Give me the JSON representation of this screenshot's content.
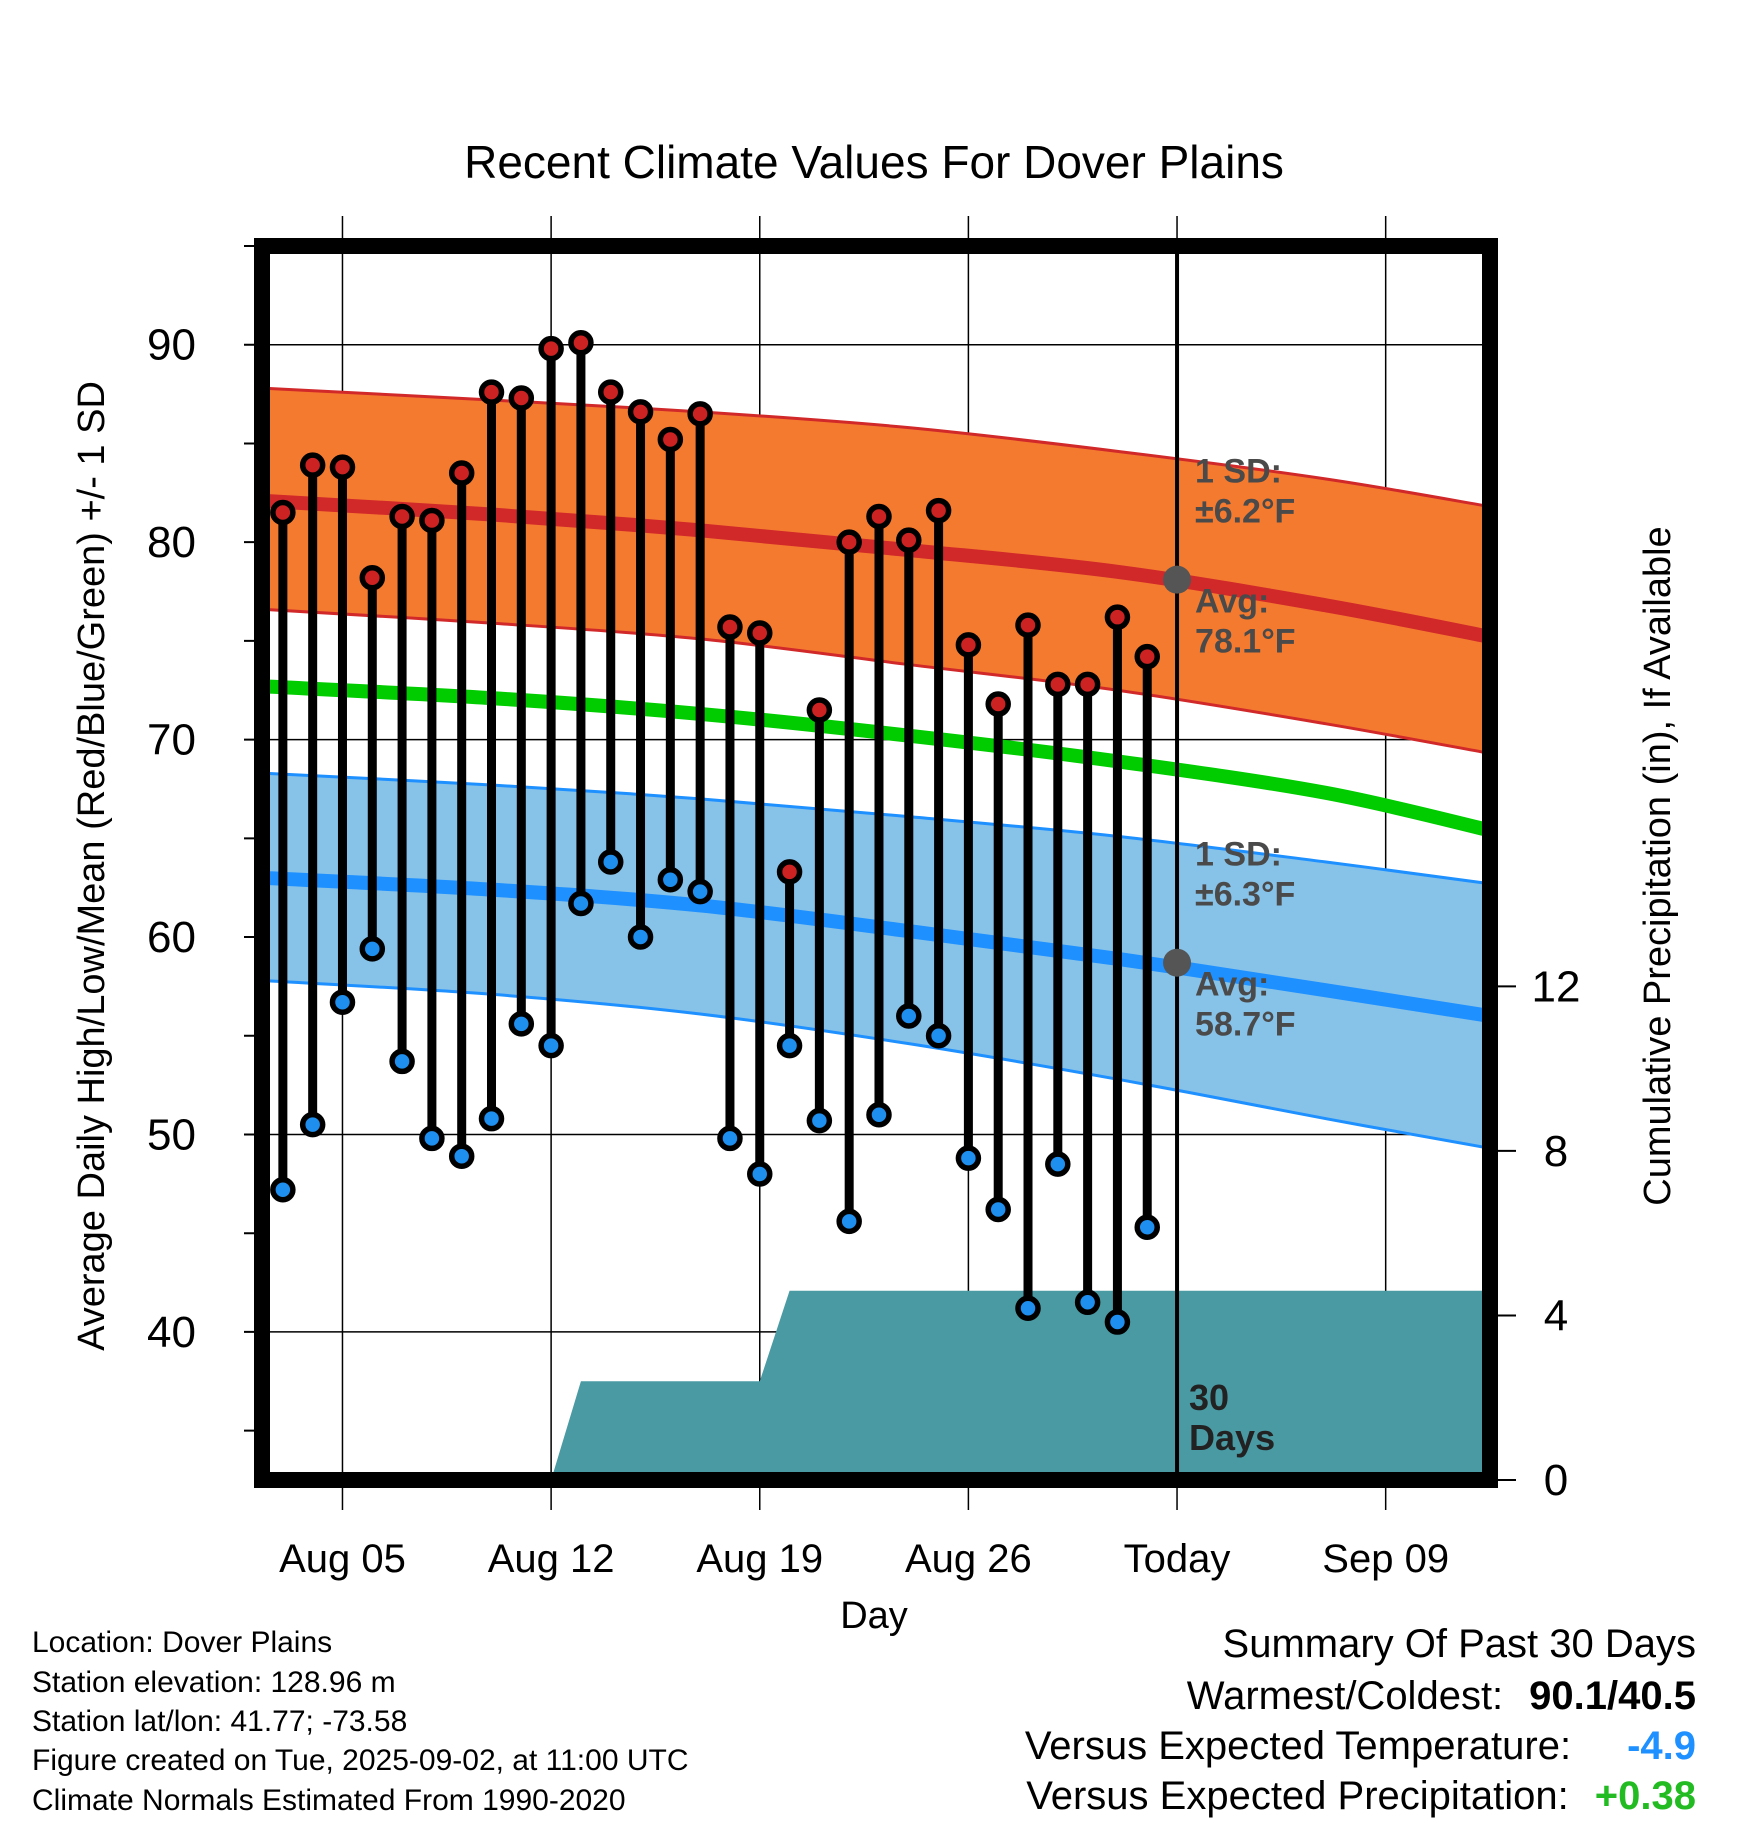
{
  "chart_data": {
    "type": "line",
    "title": "Recent Climate Values For Dover Plains",
    "xlabel": "Day",
    "ylabel": "Average Daily High/Low/Mean (Red/Blue/Green) +/- 1 SD",
    "y2label": "Cumulative Precipitation (in), If Available",
    "ylim": [
      32.5,
      95
    ],
    "y2lim": [
      0,
      30
    ],
    "y_ticks": [
      "40",
      "50",
      "60",
      "70",
      "80",
      "90"
    ],
    "y2_ticks": [
      "0",
      "4",
      "8",
      "12"
    ],
    "y2_tick_values": [
      0,
      4,
      8,
      12
    ],
    "x_ticks": [
      "Aug 05",
      "Aug 12",
      "Aug 19",
      "Aug 26",
      "Today",
      "Sep 09"
    ],
    "x_tick_days": [
      5,
      12,
      19,
      26,
      33,
      40
    ],
    "xlim": [
      2.3,
      43.5
    ],
    "today_day": 33,
    "days": [
      3,
      4,
      5,
      6,
      7,
      8,
      9,
      10,
      11,
      12,
      13,
      14,
      15,
      16,
      17,
      18,
      19,
      20,
      21,
      22,
      23,
      24,
      25,
      26,
      27,
      28,
      29,
      30,
      31,
      32
    ],
    "highs": [
      81.5,
      83.9,
      83.8,
      78.2,
      81.3,
      81.1,
      83.5,
      87.6,
      87.3,
      89.8,
      90.1,
      87.6,
      86.6,
      85.2,
      86.5,
      75.7,
      75.4,
      63.3,
      71.5,
      80.0,
      81.3,
      80.1,
      81.6,
      74.8,
      71.8,
      75.8,
      72.8,
      72.8,
      76.2,
      74.2
    ],
    "lows": [
      47.2,
      50.5,
      56.7,
      59.4,
      53.7,
      49.8,
      48.9,
      50.8,
      55.6,
      54.5,
      61.7,
      63.8,
      60.0,
      62.9,
      62.3,
      49.8,
      48.0,
      54.5,
      50.7,
      45.6,
      51.0,
      56.0,
      55.0,
      48.8,
      46.2,
      41.2,
      48.5,
      41.5,
      40.5,
      45.3
    ],
    "normals": {
      "curve_days": [
        2.3,
        10,
        17,
        24,
        31,
        38,
        43.5
      ],
      "high_mean": [
        82.1,
        81.4,
        80.6,
        79.6,
        78.5,
        76.8,
        75.2
      ],
      "high_upper": [
        87.8,
        87.2,
        86.6,
        85.8,
        84.6,
        83.2,
        81.8
      ],
      "high_lower": [
        76.6,
        75.9,
        75.1,
        73.8,
        72.5,
        70.8,
        69.3
      ],
      "mean_line": [
        72.7,
        72.1,
        71.3,
        70.2,
        68.9,
        67.3,
        65.4
      ],
      "low_mean": [
        63.0,
        62.4,
        61.6,
        60.3,
        58.9,
        57.3,
        56.0
      ],
      "low_upper": [
        68.3,
        67.7,
        67.0,
        66.1,
        65.1,
        63.8,
        62.7
      ],
      "low_lower": [
        57.8,
        57.1,
        56.1,
        54.6,
        52.8,
        50.8,
        49.3
      ],
      "high_avg_today": 78.1,
      "low_avg_today": 58.7
    },
    "precip": {
      "x": [
        2.3,
        12.0,
        13.0,
        19.0,
        20.0,
        43.5
      ],
      "y": [
        0,
        0,
        2.4,
        2.4,
        4.6,
        4.6
      ]
    },
    "annotations": {
      "high_sd_label": "1 SD:",
      "high_sd_value": "±6.2°F",
      "high_avg_label": "Avg:",
      "high_avg_value": "78.1°F",
      "low_sd_label": "1 SD:",
      "low_sd_value": "±6.3°F",
      "low_avg_label": "Avg:",
      "low_avg_value": "58.7°F",
      "window_num": "30",
      "window_unit": "Days"
    },
    "colors": {
      "high_band": "#f47a2f",
      "high_line": "#d1282a",
      "low_band": "#87c2e9",
      "low_line": "#1e90ff",
      "mean_line": "#00cc00",
      "precip_fill": "#4a9aa3",
      "high_marker": "#cc2222",
      "low_marker": "#1f8fef",
      "avg_dot": "#555555",
      "annot_text": "#4a4a4a"
    }
  },
  "info": {
    "location": "Location: Dover Plains",
    "elevation": "Station elevation: 128.96 m",
    "latlon": "Station lat/lon: 41.77; -73.58",
    "created": "Figure created on Tue, 2025-09-02, at 11:00 UTC",
    "normals_period": "Climate Normals Estimated From 1990-2020"
  },
  "summary": {
    "title": "Summary Of Past 30 Days",
    "warm_cold_label": "Warmest/Coldest:",
    "warm_cold_value": "90.1/40.5",
    "temp_label": "Versus Expected Temperature:",
    "temp_value": "-4.9",
    "temp_color": "#1e90ff",
    "precip_label": "Versus Expected Precipitation:",
    "precip_value": "+0.38",
    "precip_color": "#22bb22"
  }
}
